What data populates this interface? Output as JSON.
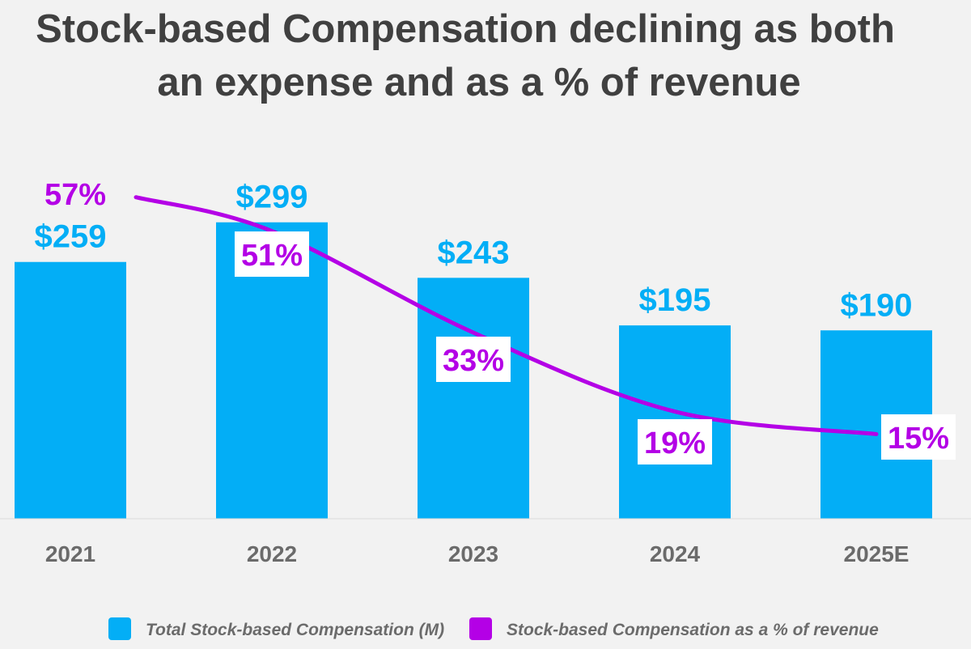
{
  "chart_data": {
    "type": "bar",
    "title": [
      "Stock-based Compensation declining as both",
      "an expense and as a % of revenue"
    ],
    "categories": [
      "2021",
      "2022",
      "2023",
      "2024",
      "2025E"
    ],
    "series": [
      {
        "name": "Total Stock-based Compensation (M)",
        "type": "bar",
        "color": "#03aef6",
        "values": [
          259,
          299,
          243,
          195,
          190
        ],
        "labels": [
          "$259",
          "$299",
          "$243",
          "$195",
          "$190"
        ]
      },
      {
        "name": "Stock-based Compensation as a % of revenue",
        "type": "line",
        "color": "#b400e6",
        "values": [
          57,
          51,
          33,
          19,
          15
        ],
        "labels": [
          "57%",
          "51%",
          "33%",
          "19%",
          "15%"
        ]
      }
    ],
    "ylim": [
      0,
      400
    ],
    "y2lim": [
      0,
      70
    ],
    "grid": false,
    "legend": "bottom"
  }
}
